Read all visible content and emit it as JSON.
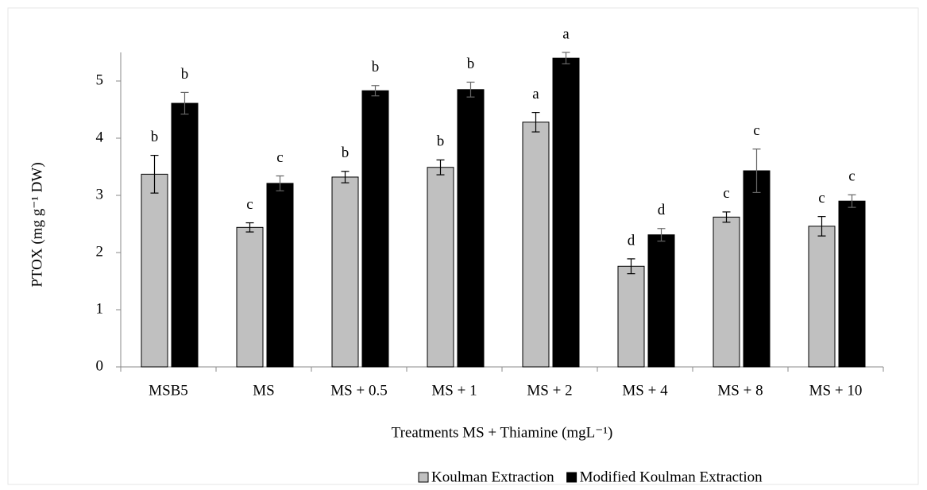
{
  "chart_data": {
    "type": "bar",
    "y_label": "PTOX (mg g⁻¹ DW)",
    "x_label": "Treatments MS + Thiamine (mgL⁻¹)",
    "categories": [
      "MSB5",
      "MS",
      "MS + 0.5",
      "MS + 1",
      "MS + 2",
      "MS + 4",
      "MS + 8",
      "MS + 10"
    ],
    "series": [
      {
        "name": "Koulman Extraction",
        "color": "#c0c0c0",
        "values": [
          3.37,
          2.44,
          3.32,
          3.49,
          4.28,
          1.76,
          2.62,
          2.46
        ],
        "errors": [
          0.33,
          0.08,
          0.1,
          0.13,
          0.17,
          0.13,
          0.09,
          0.17
        ],
        "letters": [
          "b",
          "c",
          "b",
          "b",
          "a",
          "d",
          "c",
          "c"
        ]
      },
      {
        "name": "Modified Koulman Extraction",
        "color": "#000000",
        "values": [
          4.61,
          3.21,
          4.83,
          4.85,
          5.4,
          2.31,
          3.43,
          2.9
        ],
        "errors": [
          0.19,
          0.13,
          0.09,
          0.13,
          0.1,
          0.11,
          0.38,
          0.11
        ],
        "letters": [
          "b",
          "c",
          "b",
          "b",
          "a",
          "d",
          "c",
          "c"
        ]
      }
    ],
    "ylim": [
      0,
      5.5
    ],
    "yticks": [
      0,
      1,
      2,
      3,
      4,
      5
    ],
    "legend": "bottom-right"
  }
}
